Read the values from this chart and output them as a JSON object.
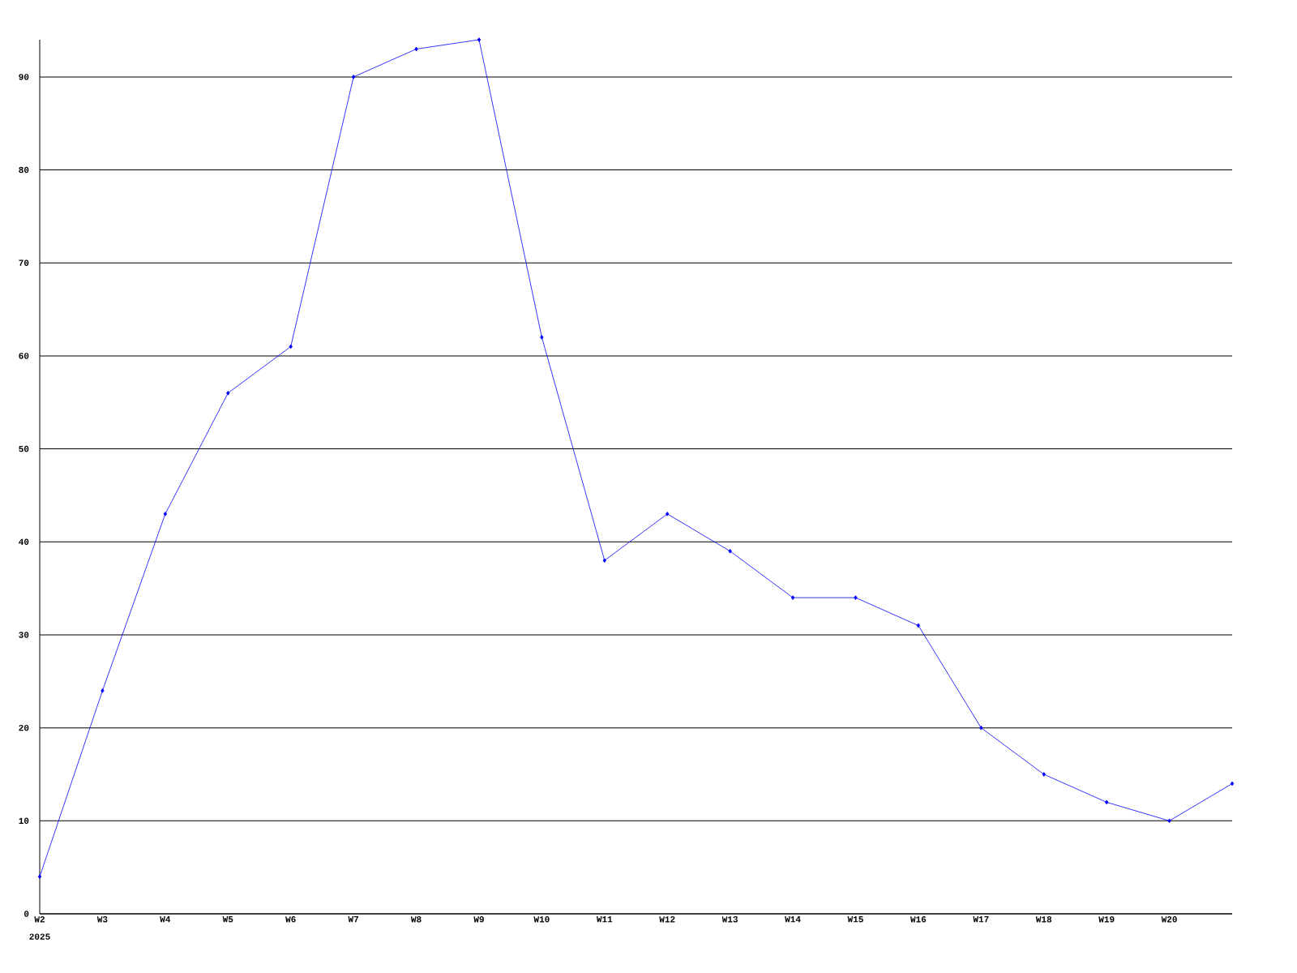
{
  "chart_data": {
    "type": "line",
    "categories": [
      "W2",
      "W3",
      "W4",
      "W5",
      "W6",
      "W7",
      "W8",
      "W9",
      "W10",
      "W11",
      "W12",
      "W13",
      "W14",
      "W15",
      "W16",
      "W17",
      "W18",
      "W19",
      "W20",
      null
    ],
    "values": [
      4,
      24,
      43,
      56,
      61,
      90,
      93,
      94,
      62,
      38,
      43,
      39,
      34,
      34,
      31,
      20,
      15,
      12,
      10,
      14
    ],
    "color": "#0000ff",
    "marker": "diamond",
    "grid": "y",
    "ylim": [
      0,
      94
    ],
    "yticks": [
      0,
      10,
      20,
      30,
      40,
      50,
      60,
      70,
      80,
      90
    ],
    "annotations": [
      "2025"
    ]
  }
}
